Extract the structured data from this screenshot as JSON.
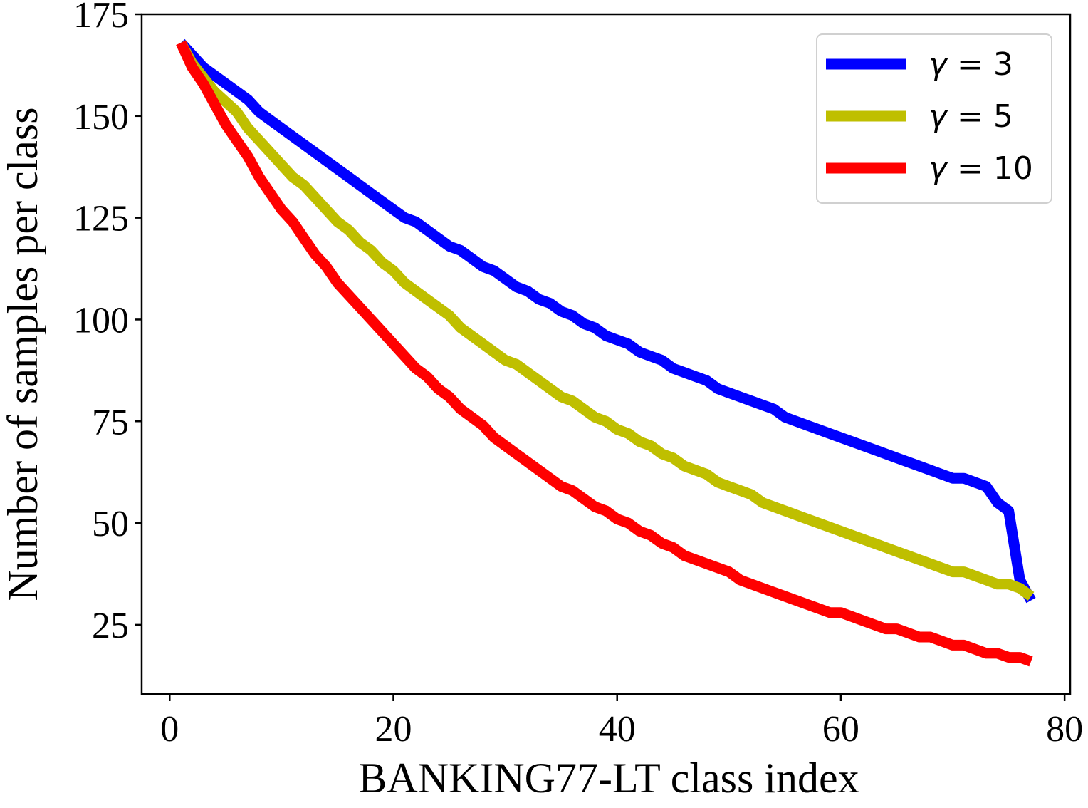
{
  "chart_data": {
    "type": "line",
    "title": "",
    "xlabel": "BANKING77-LT class index",
    "ylabel": "Number of samples per class",
    "xlim": [
      -2.5,
      80.5
    ],
    "ylim": [
      8,
      175
    ],
    "xticks": [
      0,
      20,
      40,
      60,
      80
    ],
    "yticks": [
      25,
      50,
      75,
      100,
      125,
      150,
      175
    ],
    "grid": false,
    "legend_position": "top-right",
    "series": [
      {
        "name": "γ = 3",
        "gamma_symbol": "γ",
        "gamma_value": "= 3",
        "color": "#0000ff",
        "x": [
          1,
          3,
          5,
          7,
          8,
          10,
          12,
          14,
          16,
          18,
          20,
          21,
          22,
          24,
          25,
          26,
          28,
          29,
          31,
          32,
          33,
          34,
          35,
          36,
          37,
          38,
          39,
          40,
          41,
          42,
          43,
          44,
          45,
          46,
          47,
          48,
          49,
          50,
          51,
          52,
          53,
          54,
          55,
          57,
          59,
          61,
          63,
          65,
          67,
          69,
          70,
          71,
          72,
          73,
          74,
          75,
          76,
          77
        ],
        "values": [
          168,
          162,
          158,
          154,
          151,
          147,
          143,
          139,
          135,
          131,
          127,
          125,
          124,
          120,
          118,
          117,
          113,
          112,
          108,
          107,
          105,
          104,
          102,
          101,
          99,
          98,
          96,
          95,
          94,
          92,
          91,
          90,
          88,
          87,
          86,
          85,
          83,
          82,
          81,
          80,
          79,
          78,
          76,
          74,
          72,
          70,
          68,
          66,
          64,
          62,
          61,
          61,
          60,
          59,
          55,
          53,
          36,
          31
        ]
      },
      {
        "name": "γ = 5",
        "gamma_symbol": "γ",
        "gamma_value": "= 5",
        "color": "#bfbf00",
        "x": [
          1,
          2,
          4,
          6,
          7,
          8,
          10,
          11,
          12,
          13,
          15,
          16,
          17,
          18,
          19,
          20,
          21,
          23,
          25,
          26,
          28,
          30,
          31,
          33,
          35,
          36,
          38,
          39,
          40,
          41,
          42,
          43,
          44,
          45,
          46,
          47,
          48,
          49,
          50,
          52,
          53,
          55,
          57,
          59,
          61,
          63,
          65,
          67,
          69,
          70,
          71,
          72,
          73,
          74,
          75,
          76,
          77
        ],
        "values": [
          168,
          163,
          156,
          151,
          147,
          144,
          138,
          135,
          133,
          130,
          124,
          122,
          119,
          117,
          114,
          112,
          109,
          105,
          101,
          98,
          94,
          90,
          89,
          85,
          81,
          80,
          76,
          75,
          73,
          72,
          70,
          69,
          67,
          66,
          64,
          63,
          62,
          60,
          59,
          57,
          55,
          53,
          51,
          49,
          47,
          45,
          43,
          41,
          39,
          38,
          38,
          37,
          36,
          35,
          35,
          34,
          32
        ]
      },
      {
        "name": "γ = 10",
        "gamma_symbol": "γ",
        "gamma_value": "= 10",
        "color": "#ff0000",
        "x": [
          1,
          2,
          3,
          4,
          5,
          6,
          7,
          8,
          9,
          10,
          11,
          12,
          13,
          14,
          15,
          16,
          18,
          20,
          22,
          23,
          24,
          25,
          26,
          28,
          29,
          31,
          33,
          35,
          36,
          38,
          39,
          40,
          41,
          42,
          43,
          44,
          45,
          46,
          48,
          50,
          51,
          53,
          55,
          57,
          59,
          60,
          62,
          64,
          65,
          67,
          68,
          70,
          71,
          73,
          74,
          75,
          76,
          77
        ],
        "values": [
          168,
          162,
          158,
          153,
          148,
          144,
          140,
          135,
          131,
          127,
          124,
          120,
          116,
          113,
          109,
          106,
          100,
          94,
          88,
          86,
          83,
          81,
          78,
          74,
          71,
          67,
          63,
          59,
          58,
          54,
          53,
          51,
          50,
          48,
          47,
          45,
          44,
          42,
          40,
          38,
          36,
          34,
          32,
          30,
          28,
          28,
          26,
          24,
          24,
          22,
          22,
          20,
          20,
          18,
          18,
          17,
          17,
          16
        ]
      }
    ]
  }
}
